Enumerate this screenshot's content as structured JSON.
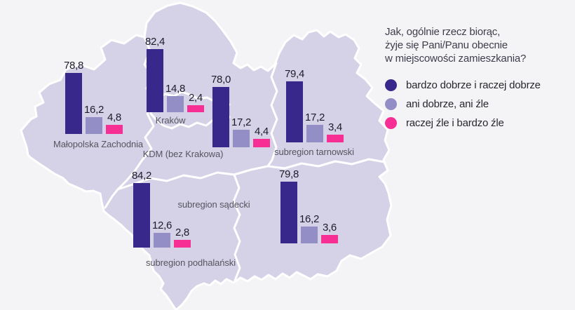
{
  "question": {
    "lines": [
      "Jak, ogólnie rzecz biorąc,",
      "żyje się Pani/Panu obecnie",
      "w miejscowości zamieszkania?"
    ]
  },
  "chart_data": {
    "type": "bar",
    "layout": "grouped bar charts overlaid on a map of Małopolska voivodeship subregions",
    "legend_position": "right",
    "value_format": "decimal comma, one decimal place",
    "categories": [
      "bardzo dobrze i raczej dobrze",
      "ani dobrze, ani źle",
      "raczej źle i bardzo źle"
    ],
    "category_keys": [
      "good",
      "neutral",
      "bad"
    ],
    "colors": [
      "#38288c",
      "#948ec7",
      "#f72e94"
    ],
    "groups": [
      {
        "region": "Małopolska Zachodnia",
        "values": [
          78.8,
          16.2,
          4.8
        ]
      },
      {
        "region": "Kraków",
        "values": [
          82.4,
          14.8,
          2.4
        ]
      },
      {
        "region": "KDM (bez Krakowa)",
        "values": [
          78.0,
          17.2,
          4.4
        ]
      },
      {
        "region": "subregion tarnowski",
        "values": [
          79.4,
          17.2,
          3.4
        ]
      },
      {
        "region": "subregion podhalański",
        "values": [
          84.2,
          12.6,
          2.8
        ]
      },
      {
        "region": "subregion sądecki",
        "values": [
          79.8,
          16.2,
          3.6
        ]
      }
    ],
    "map_fill": "#d5d2e7",
    "background": "#f4f3f5"
  }
}
